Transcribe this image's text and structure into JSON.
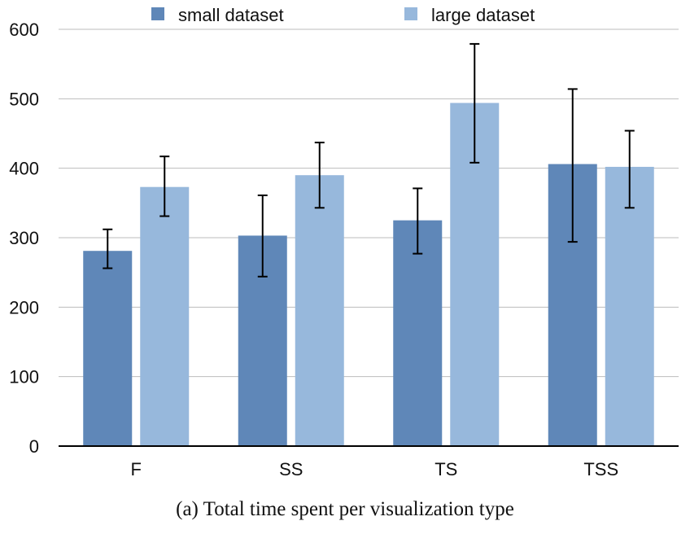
{
  "caption": "(a) Total time spent per visualization type",
  "colors": {
    "small": "#5f87b8",
    "large": "#97b8dc",
    "grid": "#bdbdbd",
    "axis": "#000000",
    "error": "#000000"
  },
  "chart_data": {
    "type": "bar",
    "categories": [
      "F",
      "SS",
      "TS",
      "TSS"
    ],
    "series": [
      {
        "name": "small dataset",
        "values": [
          281,
          303,
          325,
          406
        ],
        "error_low": [
          256,
          244,
          277,
          294
        ],
        "error_high": [
          312,
          361,
          371,
          514
        ]
      },
      {
        "name": "large dataset",
        "values": [
          373,
          390,
          494,
          402
        ],
        "error_low": [
          331,
          343,
          408,
          343
        ],
        "error_high": [
          417,
          437,
          579,
          454
        ]
      }
    ],
    "yticks": [
      "0",
      "100",
      "200",
      "300",
      "400",
      "500",
      "600"
    ],
    "ylim": [
      0,
      600
    ],
    "grid": true,
    "legend_position": "top"
  }
}
